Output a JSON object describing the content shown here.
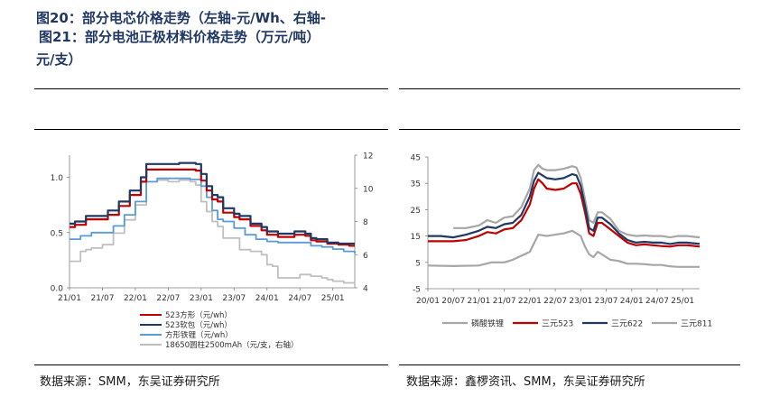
{
  "left": {
    "title_line1": "图20：部分电芯价格走势（左轴-元/Wh、右轴-",
    "title_line2": "元/支）",
    "source": "数据来源：SMM，东吴证券研究所"
  },
  "right": {
    "title": "图21：部分电池正极材料价格走势（万元/吨）",
    "source": "数据来源：鑫椤资讯、SMM，东吴证券研究所"
  },
  "chart_data": [
    {
      "type": "line",
      "xlabel": "",
      "ylabel": "",
      "x_ticks": [
        "21/01",
        "21/07",
        "22/01",
        "22/07",
        "23/01",
        "23/07",
        "24/01",
        "24/07",
        "25/01"
      ],
      "ylim_left": [
        0.0,
        1.2
      ],
      "y_ticks_left": [
        "0.0",
        "0.5",
        "1.0"
      ],
      "ylim_right": [
        4,
        12
      ],
      "y_ticks_right": [
        "4",
        "6",
        "8",
        "10",
        "12"
      ],
      "grid": false,
      "legend_position": "bottom",
      "series": [
        {
          "name": "523方形（元/wh）",
          "axis": "left",
          "color": "#c00000",
          "x": [
            "21/01",
            "21/02",
            "21/04",
            "21/06",
            "21/08",
            "21/10",
            "21/12",
            "22/02",
            "22/03",
            "22/05",
            "22/07",
            "22/09",
            "22/11",
            "22/12",
            "23/01",
            "23/02",
            "23/03",
            "23/04",
            "23/05",
            "23/06",
            "23/07",
            "23/08",
            "23/10",
            "23/12",
            "24/01",
            "24/03",
            "24/05",
            "24/06",
            "24/08",
            "24/09",
            "24/10",
            "24/12",
            "25/02",
            "25/04",
            "25/05"
          ],
          "y": [
            0.55,
            0.57,
            0.62,
            0.62,
            0.66,
            0.74,
            0.84,
            0.96,
            1.07,
            1.07,
            1.07,
            1.07,
            1.07,
            1.06,
            0.97,
            0.88,
            0.8,
            0.78,
            0.68,
            0.68,
            0.64,
            0.62,
            0.56,
            0.52,
            0.48,
            0.46,
            0.46,
            0.48,
            0.47,
            0.43,
            0.42,
            0.4,
            0.39,
            0.38,
            0.38
          ]
        },
        {
          "name": "523软包（元/wh）",
          "axis": "left",
          "color": "#1f3864",
          "x": [
            "21/01",
            "21/02",
            "21/04",
            "21/06",
            "21/08",
            "21/10",
            "21/12",
            "22/02",
            "22/03",
            "22/05",
            "22/07",
            "22/09",
            "22/11",
            "22/12",
            "23/01",
            "23/02",
            "23/03",
            "23/04",
            "23/05",
            "23/06",
            "23/07",
            "23/08",
            "23/10",
            "23/12",
            "24/01",
            "24/03",
            "24/05",
            "24/06",
            "24/08",
            "24/09",
            "24/10",
            "24/12",
            "25/02",
            "25/04",
            "25/05"
          ],
          "y": [
            0.58,
            0.6,
            0.65,
            0.65,
            0.7,
            0.78,
            0.88,
            1.0,
            1.12,
            1.12,
            1.12,
            1.13,
            1.13,
            1.12,
            1.03,
            0.92,
            0.84,
            0.82,
            0.72,
            0.72,
            0.67,
            0.65,
            0.58,
            0.55,
            0.51,
            0.49,
            0.49,
            0.51,
            0.49,
            0.45,
            0.44,
            0.41,
            0.4,
            0.4,
            0.4
          ]
        },
        {
          "name": "方形铁锂（元/wh）",
          "axis": "left",
          "color": "#5b9bd5",
          "x": [
            "21/01",
            "21/03",
            "21/05",
            "21/07",
            "21/09",
            "21/11",
            "22/01",
            "22/03",
            "22/05",
            "22/08",
            "22/11",
            "22/12",
            "23/01",
            "23/02",
            "23/03",
            "23/04",
            "23/05",
            "23/07",
            "23/09",
            "23/11",
            "24/01",
            "24/03",
            "24/05",
            "24/07",
            "24/09",
            "24/11",
            "25/01",
            "25/03",
            "25/05"
          ],
          "y": [
            0.44,
            0.47,
            0.5,
            0.5,
            0.56,
            0.66,
            0.78,
            0.96,
            0.99,
            0.99,
            0.98,
            0.98,
            0.92,
            0.82,
            0.7,
            0.62,
            0.6,
            0.54,
            0.48,
            0.44,
            0.42,
            0.41,
            0.41,
            0.41,
            0.38,
            0.37,
            0.35,
            0.33,
            0.31
          ]
        },
        {
          "name": "18650圆柱2500mAh（元/支，右轴）",
          "axis": "right",
          "color": "#bfbfbf",
          "x": [
            "21/01",
            "21/02",
            "21/03",
            "21/04",
            "21/05",
            "21/07",
            "21/09",
            "21/11",
            "22/01",
            "22/03",
            "22/05",
            "22/07",
            "22/09",
            "22/11",
            "22/12",
            "23/01",
            "23/02",
            "23/03",
            "23/04",
            "23/05",
            "23/07",
            "23/08",
            "23/09",
            "23/10",
            "23/12",
            "24/01",
            "24/02",
            "24/03",
            "24/05",
            "24/07",
            "24/09",
            "24/11",
            "24/12",
            "25/01",
            "25/03",
            "25/05"
          ],
          "y": [
            5.6,
            5.6,
            6.2,
            6.3,
            6.4,
            6.6,
            7.3,
            8.1,
            9.0,
            10.4,
            10.5,
            10.4,
            10.5,
            10.4,
            10.2,
            9.2,
            8.6,
            8.0,
            7.7,
            7.0,
            7.0,
            6.3,
            6.3,
            6.2,
            6.0,
            5.4,
            5.3,
            4.6,
            4.6,
            4.8,
            4.7,
            4.6,
            4.5,
            4.4,
            4.3,
            4.3
          ]
        }
      ]
    },
    {
      "type": "line",
      "xlabel": "",
      "ylabel": "",
      "x_ticks": [
        "20/01",
        "20/07",
        "21/01",
        "21/07",
        "22/01",
        "22/07",
        "23/01",
        "23/07",
        "24/01",
        "24/07",
        "25/01"
      ],
      "ylim": [
        -5,
        45
      ],
      "y_ticks": [
        "-5",
        "5",
        "15",
        "25",
        "35",
        "45"
      ],
      "grid": false,
      "legend_position": "bottom",
      "series": [
        {
          "name": "磷酸铁锂",
          "color": "#a6a6a6",
          "x": [
            "20/01",
            "20/07",
            "21/01",
            "21/04",
            "21/07",
            "21/09",
            "21/11",
            "22/01",
            "22/03",
            "22/05",
            "22/07",
            "22/09",
            "22/11",
            "22/12",
            "23/01",
            "23/02",
            "23/03",
            "23/04",
            "23/05",
            "23/06",
            "23/08",
            "23/10",
            "23/12",
            "24/02",
            "24/04",
            "24/06",
            "24/08",
            "24/10",
            "24/12",
            "25/02",
            "25/05"
          ],
          "y": [
            3.8,
            3.6,
            3.8,
            5.0,
            5.0,
            6.0,
            7.5,
            9.0,
            15.5,
            15.0,
            15.5,
            16.0,
            17.0,
            16.0,
            15.0,
            11.0,
            8.0,
            7.0,
            9.0,
            8.0,
            6.0,
            5.5,
            4.5,
            4.5,
            4.3,
            4.0,
            4.0,
            3.5,
            3.3,
            3.3,
            3.3
          ]
        },
        {
          "name": "三元523",
          "color": "#c00000",
          "x": [
            "20/01",
            "20/04",
            "20/07",
            "20/10",
            "21/01",
            "21/03",
            "21/05",
            "21/07",
            "21/09",
            "21/11",
            "22/01",
            "22/02",
            "22/03",
            "22/04",
            "22/05",
            "22/07",
            "22/09",
            "22/11",
            "22/12",
            "23/01",
            "23/02",
            "23/03",
            "23/04",
            "23/05",
            "23/06",
            "23/08",
            "23/10",
            "23/12",
            "24/02",
            "24/04",
            "24/06",
            "24/08",
            "24/10",
            "24/12",
            "25/02",
            "25/05"
          ],
          "y": [
            13.0,
            13.0,
            13.0,
            13.5,
            15.0,
            16.5,
            16.0,
            17.5,
            18.0,
            21.0,
            27.0,
            33.0,
            36.5,
            35.0,
            33.0,
            32.5,
            33.0,
            35.0,
            35.0,
            31.0,
            24.0,
            16.0,
            15.0,
            20.0,
            20.0,
            17.5,
            15.0,
            12.5,
            11.5,
            11.8,
            11.5,
            11.2,
            11.0,
            11.5,
            11.5,
            11.0
          ]
        },
        {
          "name": "三元622",
          "color": "#1f3864",
          "x": [
            "20/01",
            "20/04",
            "20/07",
            "20/10",
            "21/01",
            "21/03",
            "21/05",
            "21/07",
            "21/09",
            "21/11",
            "22/01",
            "22/02",
            "22/03",
            "22/04",
            "22/05",
            "22/07",
            "22/09",
            "22/11",
            "22/12",
            "23/01",
            "23/02",
            "23/03",
            "23/04",
            "23/05",
            "23/06",
            "23/08",
            "23/10",
            "23/12",
            "24/02",
            "24/04",
            "24/06",
            "24/08",
            "24/10",
            "24/12",
            "25/02",
            "25/05"
          ],
          "y": [
            15.0,
            15.0,
            14.5,
            15.5,
            17.0,
            18.5,
            18.0,
            19.5,
            20.0,
            23.0,
            30.0,
            36.0,
            39.0,
            38.0,
            37.0,
            36.5,
            37.0,
            38.5,
            38.0,
            34.0,
            26.5,
            18.0,
            17.0,
            22.0,
            22.0,
            19.5,
            16.0,
            13.5,
            12.5,
            12.8,
            12.5,
            12.5,
            12.0,
            12.5,
            12.5,
            12.0
          ]
        },
        {
          "name": "三元811",
          "color": "#a6a6a6",
          "x": [
            "20/01",
            "20/04",
            "20/07",
            "20/10",
            "21/01",
            "21/03",
            "21/05",
            "21/07",
            "21/09",
            "21/11",
            "22/01",
            "22/02",
            "22/03",
            "22/04",
            "22/05",
            "22/07",
            "22/09",
            "22/11",
            "22/12",
            "23/01",
            "23/02",
            "23/03",
            "23/04",
            "23/05",
            "23/06",
            "23/08",
            "23/10",
            "23/12",
            "24/02",
            "24/04",
            "24/06",
            "24/08",
            "24/10",
            "24/12",
            "25/02",
            "25/05"
          ],
          "y": [
            null,
            null,
            18.0,
            18.0,
            19.0,
            21.0,
            20.0,
            22.0,
            22.5,
            26.0,
            33.0,
            40.0,
            42.0,
            40.5,
            40.0,
            40.0,
            40.5,
            41.5,
            41.0,
            37.0,
            29.0,
            21.0,
            20.0,
            24.0,
            24.0,
            21.5,
            17.0,
            15.5,
            15.0,
            15.2,
            15.0,
            15.0,
            14.5,
            15.0,
            15.0,
            14.5
          ]
        }
      ]
    }
  ]
}
